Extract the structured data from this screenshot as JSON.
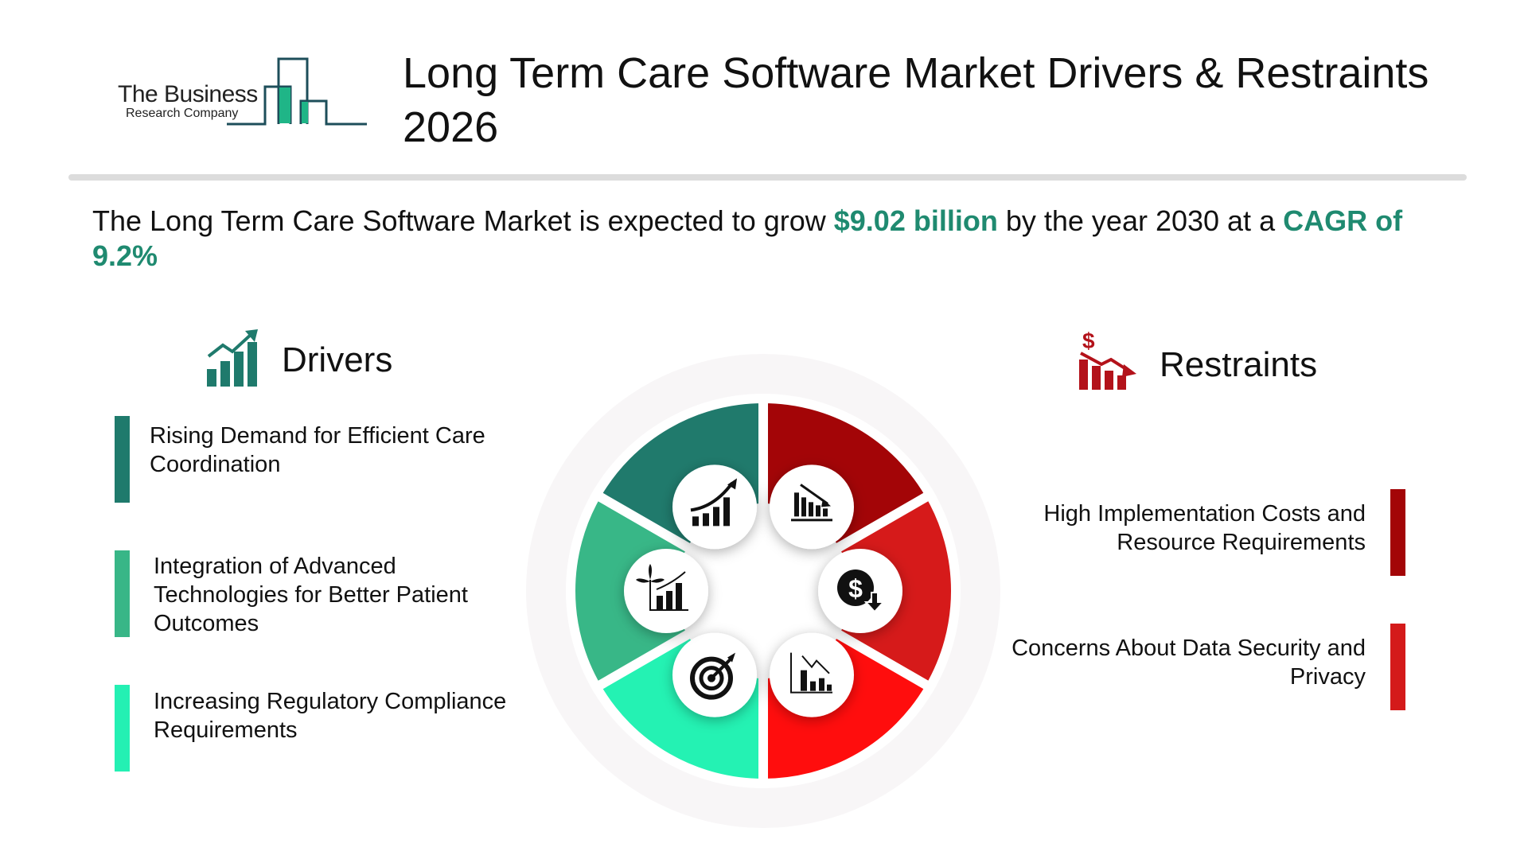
{
  "logo": {
    "line1": "The Business",
    "line2": "Research Company"
  },
  "title": "Long Term Care Software Market Drivers & Restraints 2026",
  "subtitle": {
    "prefix": "The Long Term Care Software Market is expected to grow ",
    "value": "$9.02 billion",
    "middle": " by the year 2030 at a ",
    "cagr": "CAGR of 9.2%"
  },
  "drivers": {
    "heading": "Drivers",
    "icon": "growth-chart-icon",
    "items": [
      {
        "text": "Rising Demand for Efficient Care Coordination",
        "color": "#1f7a6c"
      },
      {
        "text": "Integration of Advanced Technologies for Better Patient Outcomes",
        "color": "#38b687"
      },
      {
        "text": "Increasing Regulatory Compliance Requirements",
        "color": "#24f0b3"
      }
    ]
  },
  "restraints": {
    "heading": "Restraints",
    "icon": "declining-revenue-icon",
    "items": [
      {
        "text": "High Implementation Costs and Resource Requirements",
        "color": "#a30507"
      },
      {
        "text": "Concerns About Data Security and Privacy",
        "color": "#d41a1a"
      }
    ]
  },
  "wheel": {
    "segments": [
      {
        "color": "#a30507",
        "icon": "declining-bar-chart-icon"
      },
      {
        "color": "#d61a1a",
        "icon": "dollar-down-icon"
      },
      {
        "color": "#ff0d0d",
        "icon": "falling-chart-icon"
      },
      {
        "color": "#24f2b3",
        "icon": "target-icon"
      },
      {
        "color": "#38b787",
        "icon": "plant-growth-chart-icon"
      },
      {
        "color": "#207a6c",
        "icon": "rising-chart-icon"
      }
    ]
  }
}
